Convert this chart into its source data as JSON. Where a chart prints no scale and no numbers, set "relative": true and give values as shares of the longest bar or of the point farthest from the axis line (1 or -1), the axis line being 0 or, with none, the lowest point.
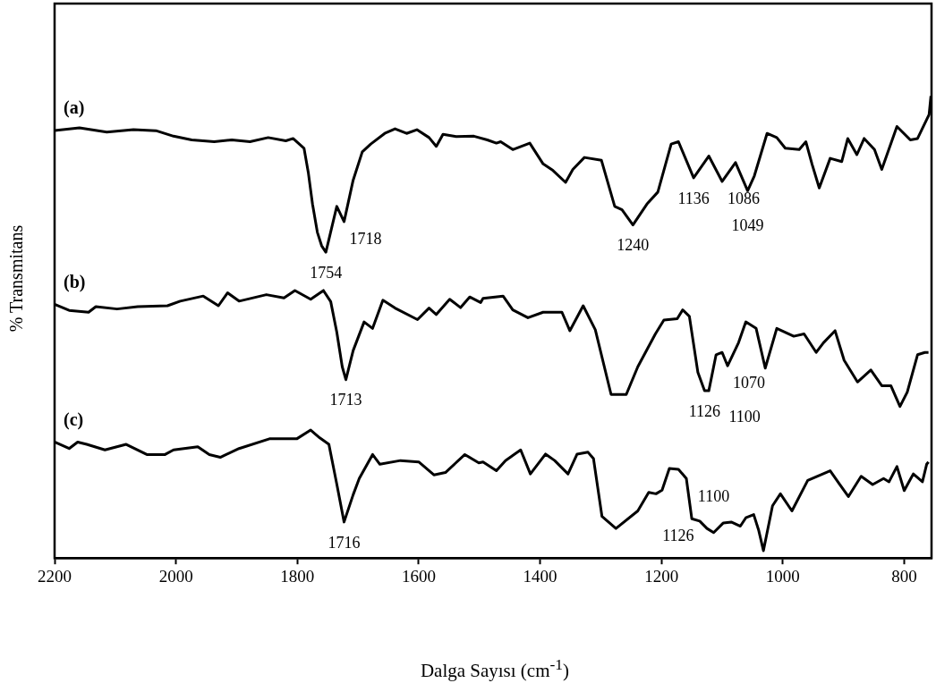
{
  "chart_data": {
    "type": "line",
    "xlabel": "Dalga Sayısı (cm$^{-1}$)",
    "ylabel": "% Transmitans",
    "relative": true,
    "xlim": [
      2200,
      755
    ],
    "xticks": [
      2200,
      2000,
      1800,
      1600,
      1400,
      1200,
      1000,
      800
    ],
    "grid": false,
    "legend": false,
    "marker": "none",
    "line_style": "solid",
    "series": [
      {
        "name": "(a)",
        "color": "#000000",
        "x": [
          2200,
          2159,
          2114,
          2070,
          2033,
          2004,
          1974,
          1937,
          1908,
          1878,
          1848,
          1819,
          1807,
          1789,
          1782,
          1775,
          1767,
          1760,
          1753,
          1735,
          1723,
          1708,
          1693,
          1679,
          1656,
          1639,
          1620,
          1603,
          1583,
          1571,
          1560,
          1538,
          1509,
          1487,
          1472,
          1465,
          1445,
          1417,
          1395,
          1379,
          1358,
          1346,
          1327,
          1299,
          1277,
          1265,
          1247,
          1224,
          1206,
          1184,
          1172,
          1147,
          1122,
          1100,
          1078,
          1058,
          1047,
          1026,
          1010,
          996,
          973,
          962,
          952,
          940,
          922,
          903,
          893,
          878,
          866,
          849,
          837,
          812,
          790,
          778,
          759,
          756
        ],
        "values": [
          0.925,
          0.931,
          0.922,
          0.927,
          0.925,
          0.913,
          0.905,
          0.901,
          0.905,
          0.901,
          0.91,
          0.903,
          0.908,
          0.887,
          0.835,
          0.766,
          0.705,
          0.676,
          0.662,
          0.761,
          0.728,
          0.818,
          0.879,
          0.896,
          0.919,
          0.929,
          0.919,
          0.927,
          0.91,
          0.891,
          0.917,
          0.912,
          0.913,
          0.905,
          0.898,
          0.901,
          0.884,
          0.898,
          0.853,
          0.839,
          0.813,
          0.841,
          0.867,
          0.861,
          0.761,
          0.754,
          0.721,
          0.766,
          0.792,
          0.896,
          0.901,
          0.823,
          0.87,
          0.815,
          0.856,
          0.795,
          0.827,
          0.919,
          0.91,
          0.887,
          0.884,
          0.901,
          0.853,
          0.801,
          0.865,
          0.858,
          0.908,
          0.873,
          0.908,
          0.884,
          0.841,
          0.934,
          0.905,
          0.908,
          0.96,
          1
        ]
      },
      {
        "name": "(b)",
        "color": "#000000",
        "x": [
          2200,
          2176,
          2144,
          2132,
          2097,
          2063,
          2014,
          1993,
          1955,
          1930,
          1915,
          1896,
          1851,
          1822,
          1804,
          1778,
          1757,
          1745,
          1735,
          1726,
          1720,
          1708,
          1690,
          1676,
          1659,
          1639,
          1602,
          1583,
          1571,
          1549,
          1531,
          1516,
          1498,
          1494,
          1461,
          1445,
          1420,
          1395,
          1364,
          1351,
          1329,
          1309,
          1283,
          1258,
          1239,
          1210,
          1196,
          1174,
          1165,
          1154,
          1140,
          1129,
          1122,
          1110,
          1100,
          1091,
          1073,
          1061,
          1044,
          1029,
          1010,
          982,
          965,
          945,
          933,
          914,
          899,
          877,
          855,
          837,
          822,
          807,
          795,
          778,
          766,
          760
        ],
        "values": [
          0.549,
          0.536,
          0.532,
          0.544,
          0.539,
          0.544,
          0.546,
          0.556,
          0.567,
          0.546,
          0.574,
          0.556,
          0.57,
          0.563,
          0.579,
          0.56,
          0.579,
          0.555,
          0.489,
          0.414,
          0.386,
          0.449,
          0.511,
          0.497,
          0.558,
          0.541,
          0.516,
          0.541,
          0.527,
          0.56,
          0.542,
          0.565,
          0.553,
          0.562,
          0.567,
          0.537,
          0.52,
          0.532,
          0.532,
          0.492,
          0.546,
          0.494,
          0.354,
          0.354,
          0.414,
          0.485,
          0.515,
          0.518,
          0.537,
          0.523,
          0.402,
          0.362,
          0.362,
          0.44,
          0.445,
          0.416,
          0.466,
          0.511,
          0.497,
          0.411,
          0.497,
          0.48,
          0.485,
          0.445,
          0.466,
          0.492,
          0.428,
          0.381,
          0.407,
          0.373,
          0.373,
          0.328,
          0.359,
          0.44,
          0.445,
          0.445
        ]
      },
      {
        "name": "(c)",
        "color": "#000000",
        "x": [
          2200,
          2176,
          2162,
          2147,
          2117,
          2082,
          2048,
          2018,
          2004,
          1964,
          1945,
          1927,
          1896,
          1846,
          1801,
          1778,
          1763,
          1748,
          1735,
          1723,
          1708,
          1698,
          1676,
          1664,
          1630,
          1600,
          1575,
          1556,
          1524,
          1501,
          1494,
          1472,
          1457,
          1432,
          1416,
          1391,
          1376,
          1354,
          1339,
          1321,
          1312,
          1298,
          1275,
          1239,
          1221,
          1209,
          1199,
          1187,
          1172,
          1159,
          1150,
          1137,
          1125,
          1114,
          1098,
          1085,
          1070,
          1061,
          1048,
          1040,
          1032,
          1017,
          1004,
          985,
          959,
          922,
          906,
          892,
          871,
          852,
          834,
          825,
          812,
          800,
          785,
          770,
          763,
          760
        ],
        "values": [
          0.251,
          0.237,
          0.251,
          0.246,
          0.234,
          0.246,
          0.224,
          0.224,
          0.234,
          0.241,
          0.224,
          0.218,
          0.237,
          0.258,
          0.258,
          0.277,
          0.26,
          0.246,
          0.16,
          0.078,
          0.137,
          0.172,
          0.224,
          0.203,
          0.211,
          0.208,
          0.18,
          0.185,
          0.224,
          0.206,
          0.208,
          0.189,
          0.211,
          0.234,
          0.182,
          0.225,
          0.211,
          0.182,
          0.225,
          0.229,
          0.215,
          0.09,
          0.064,
          0.102,
          0.142,
          0.139,
          0.147,
          0.194,
          0.192,
          0.172,
          0.085,
          0.08,
          0.064,
          0.055,
          0.076,
          0.078,
          0.069,
          0.087,
          0.094,
          0.061,
          0.016,
          0.113,
          0.139,
          0.102,
          0.168,
          0.189,
          0.159,
          0.133,
          0.177,
          0.159,
          0.172,
          0.165,
          0.198,
          0.146,
          0.182,
          0.165,
          0.203,
          0.208
        ]
      }
    ],
    "annotations": [
      {
        "text": "1754",
        "x": 1753,
        "y": 0.662
      },
      {
        "text": "1718",
        "x": 1723,
        "y": 0.728
      },
      {
        "text": "1240",
        "x": 1247,
        "y": 0.721
      },
      {
        "text": "1136",
        "x": 1147,
        "y": 0.823
      },
      {
        "text": "1086",
        "x": 1100,
        "y": 0.815
      },
      {
        "text": "1049",
        "x": 1058,
        "y": 0.795
      },
      {
        "text": "1713",
        "x": 1720,
        "y": 0.386
      },
      {
        "text": "1126",
        "x": 1129,
        "y": 0.362
      },
      {
        "text": "1100",
        "x": 1122,
        "y": 0.362
      },
      {
        "text": "1070",
        "x": 1091,
        "y": 0.416
      },
      {
        "text": "1716",
        "x": 1723,
        "y": 0.078
      },
      {
        "text": "1126",
        "x": 1137,
        "y": 0.085
      },
      {
        "text": "1100",
        "x": 1114,
        "y": 0.055
      }
    ]
  }
}
